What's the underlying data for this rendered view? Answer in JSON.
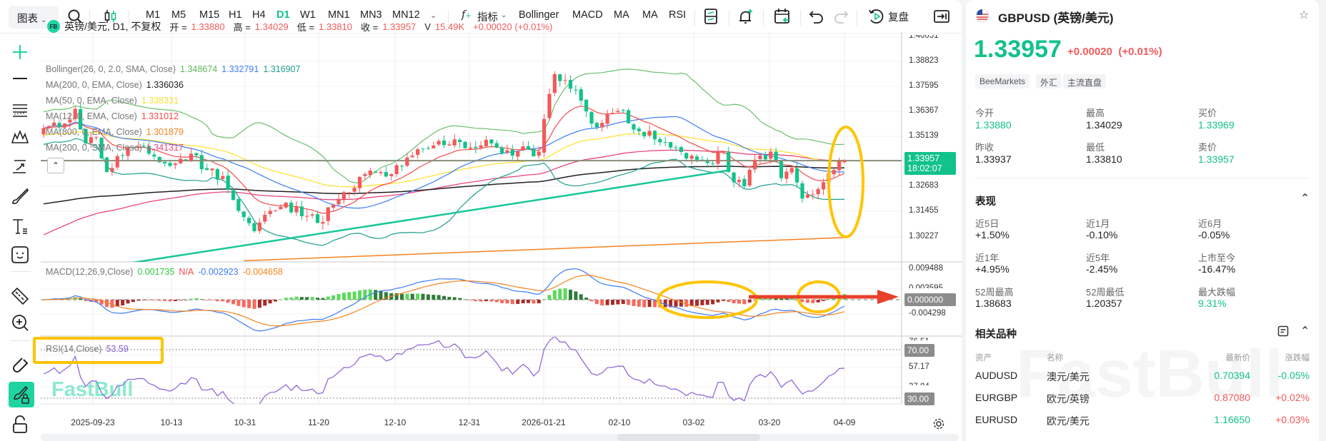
{
  "toolbar": {
    "chart_menu": "图表",
    "timeframes": [
      "M1",
      "M5",
      "M15",
      "H1",
      "H4",
      "D1",
      "W1",
      "MN1",
      "MN3",
      "MN12"
    ],
    "active_timeframe": "D1",
    "indicators_label": "指标",
    "indicator_shortcuts": [
      "Bollinger",
      "MACD",
      "MA",
      "MA",
      "RSI"
    ],
    "replay_label": "复盘"
  },
  "legend": {
    "symbol": "英镑/美元, D1, 不复权",
    "logo": "FB",
    "open_label": "开 =",
    "open": "1.33880",
    "high_label": "高 =",
    "high": "1.34029",
    "low_label": "低 =",
    "low": "1.33810",
    "close_label": "收 =",
    "close": "1.33957",
    "volume_label": "V",
    "volume": "15.49K",
    "change": "+0.00020 (+0.01%)"
  },
  "indicators": [
    {
      "label": "Bollinger(26, 0, 2.0, SMA, Close)",
      "values": [
        {
          "v": "1.348674",
          "color": "#5cb85c"
        },
        {
          "v": "1.332791",
          "color": "#3d7cf5"
        },
        {
          "v": "1.316907",
          "color": "#1e9e8e"
        }
      ]
    },
    {
      "label": "MA(200, 0, EMA, Close)",
      "values": [
        {
          "v": "1.336036",
          "color": "#222222"
        }
      ]
    },
    {
      "label": "MA(50, 0, EMA, Close)",
      "values": [
        {
          "v": "1.338331",
          "color": "#f5e03a"
        }
      ]
    },
    {
      "label": "MA(12, 0, EMA, Close)",
      "values": [
        {
          "v": "1.331012",
          "color": "#f44b4b"
        }
      ]
    },
    {
      "label": "MA(800, 0, EMA, Close)",
      "values": [
        {
          "v": "1.301879",
          "color": "#f5821f"
        }
      ]
    },
    {
      "label": "MA(200, 0, SMA, Close)",
      "values": [
        {
          "v": "1.341317",
          "color": "#e8457a"
        }
      ]
    }
  ],
  "macd_legend": {
    "label": "MACD(12,26,9,Close)",
    "values": [
      {
        "v": "0.001735",
        "color": "#2ecc40"
      },
      {
        "v": "N/A",
        "color": "#f44b4b"
      },
      {
        "v": "-0.002923",
        "color": "#3d7cf5"
      },
      {
        "v": "-0.004658",
        "color": "#f5821f"
      }
    ]
  },
  "rsi_legend": {
    "label": "RSI(14,Close)",
    "value": "53.59",
    "color": "#8a5cd6"
  },
  "price_axis": [
    "1.40051",
    "1.38823",
    "1.37595",
    "1.36367",
    "1.35139",
    "1.32683",
    "1.31455",
    "1.30227"
  ],
  "last_price": {
    "price": "1.33957",
    "countdown": "18:02:07"
  },
  "macd_axis": [
    "0.009488",
    "0.003595",
    "-0.004298"
  ],
  "macd_zero": "0.000000",
  "rsi_axis": [
    "76.51",
    "57.17",
    "37.84"
  ],
  "rsi_levels": [
    "70.00",
    "30.00"
  ],
  "date_axis": [
    "2025-09-23",
    "10-13",
    "10-31",
    "11-20",
    "12-10",
    "12-31",
    "2026-01-21",
    "02-10",
    "03-02",
    "03-20",
    "04-09"
  ],
  "watermark": "FastBull",
  "colors": {
    "up": "#f25a5a",
    "down": "#12c28a",
    "accent": "#12c28a",
    "annotation": "#ffc400",
    "arrow": "#e8402a"
  },
  "chart_data": {
    "type": "candlestick",
    "symbol": "GBPUSD",
    "timeframe": "D1",
    "ylim": [
      1.29,
      1.40051
    ],
    "last_bar": {
      "open": 1.3388,
      "high": 1.34029,
      "low": 1.3381,
      "close": 1.33957
    },
    "close_keypoints": [
      [
        "2025-09-09",
        1.3555
      ],
      [
        "2025-09-12",
        1.356
      ],
      [
        "2025-09-17",
        1.365
      ],
      [
        "2025-09-19",
        1.348
      ],
      [
        "2025-09-23",
        1.351
      ],
      [
        "2025-09-25",
        1.334
      ],
      [
        "2025-10-01",
        1.346
      ],
      [
        "2025-10-07",
        1.343
      ],
      [
        "2025-10-13",
        1.337
      ],
      [
        "2025-10-17",
        1.343
      ],
      [
        "2025-10-22",
        1.335
      ],
      [
        "2025-10-27",
        1.332
      ],
      [
        "2025-10-30",
        1.315
      ],
      [
        "2025-11-04",
        1.305
      ],
      [
        "2025-11-07",
        1.315
      ],
      [
        "2025-11-11",
        1.317
      ],
      [
        "2025-11-14",
        1.317
      ],
      [
        "2025-11-20",
        1.309
      ],
      [
        "2025-11-25",
        1.318
      ],
      [
        "2025-11-28",
        1.324
      ],
      [
        "2025-12-03",
        1.333
      ],
      [
        "2025-12-10",
        1.333
      ],
      [
        "2025-12-12",
        1.337
      ],
      [
        "2025-12-16",
        1.342
      ],
      [
        "2025-12-22",
        1.347
      ],
      [
        "2025-12-26",
        1.35
      ],
      [
        "2025-12-31",
        1.346
      ],
      [
        "2026-01-06",
        1.348
      ],
      [
        "2026-01-12",
        1.342
      ],
      [
        "2026-01-15",
        1.345
      ],
      [
        "2026-01-19",
        1.344
      ],
      [
        "2026-01-20",
        1.36
      ],
      [
        "2026-01-22",
        1.382
      ],
      [
        "2026-01-26",
        1.379
      ],
      [
        "2026-01-29",
        1.369
      ],
      [
        "2026-02-03",
        1.356
      ],
      [
        "2026-02-06",
        1.363
      ],
      [
        "2026-02-10",
        1.364
      ],
      [
        "2026-02-13",
        1.354
      ],
      [
        "2026-02-18",
        1.35
      ],
      [
        "2026-02-23",
        1.346
      ],
      [
        "2026-02-27",
        1.342
      ],
      [
        "2026-03-02",
        1.34
      ],
      [
        "2026-03-05",
        1.338
      ],
      [
        "2026-03-09",
        1.344
      ],
      [
        "2026-03-11",
        1.329
      ],
      [
        "2026-03-13",
        1.327
      ],
      [
        "2026-03-17",
        1.34
      ],
      [
        "2026-03-20",
        1.344
      ],
      [
        "2026-03-24",
        1.331
      ],
      [
        "2026-03-26",
        1.336
      ],
      [
        "2026-03-30",
        1.321
      ],
      [
        "2026-04-01",
        1.323
      ],
      [
        "2026-04-03",
        1.329
      ],
      [
        "2026-04-07",
        1.335
      ],
      [
        "2026-04-08",
        1.33937
      ],
      [
        "2026-04-09",
        1.33957
      ]
    ],
    "rsi_levels": [
      70,
      30
    ],
    "macd_range": [
      -0.0065,
      0.0105
    ]
  },
  "panel": {
    "title": "GBPUSD (英镑/美元)",
    "price": "1.33957",
    "change": "+0.00020",
    "change_pct": "(+0.01%)",
    "tags": [
      "BeeMarkets",
      "外汇",
      "主流直盘"
    ],
    "quote": [
      {
        "label": "今开",
        "value": "1.33880",
        "color": "green"
      },
      {
        "label": "最高",
        "value": "1.34029",
        "color": "normal"
      },
      {
        "label": "买价",
        "value": "1.33969",
        "color": "green"
      },
      {
        "label": "昨收",
        "value": "1.33937",
        "color": "normal"
      },
      {
        "label": "最低",
        "value": "1.33810",
        "color": "normal"
      },
      {
        "label": "卖价",
        "value": "1.33957",
        "color": "green"
      }
    ],
    "performance_title": "表现",
    "performance": [
      {
        "label": "近5日",
        "value": "+1.50%",
        "color": "normal"
      },
      {
        "label": "近1月",
        "value": "-0.10%",
        "color": "normal"
      },
      {
        "label": "近6月",
        "value": "-0.05%",
        "color": "normal"
      },
      {
        "label": "近1年",
        "value": "+4.95%",
        "color": "normal"
      },
      {
        "label": "近5年",
        "value": "-2.45%",
        "color": "normal"
      },
      {
        "label": "上市至今",
        "value": "-16.47%",
        "color": "normal"
      },
      {
        "label": "52周最高",
        "value": "1.38683",
        "color": "normal"
      },
      {
        "label": "52周最低",
        "value": "1.20357",
        "color": "normal"
      },
      {
        "label": "最大跌幅",
        "value": "9.31%",
        "color": "green"
      }
    ],
    "related_title": "相关品种",
    "related_headers": [
      "资产",
      "名称",
      "最新价",
      "涨跌幅"
    ],
    "related": [
      {
        "symbol": "AUDUSD",
        "name": "澳元/美元",
        "price": "0.70394",
        "change": "-0.05%",
        "price_color": "#12c28a",
        "change_color": "#12c28a"
      },
      {
        "symbol": "EURGBP",
        "name": "欧元/英镑",
        "price": "0.87080",
        "change": "+0.02%",
        "price_color": "#f25a5a",
        "change_color": "#f25a5a"
      },
      {
        "symbol": "EURUSD",
        "name": "欧元/美元",
        "price": "1.16650",
        "change": "+0.03%",
        "price_color": "#12c28a",
        "change_color": "#f25a5a"
      }
    ]
  }
}
